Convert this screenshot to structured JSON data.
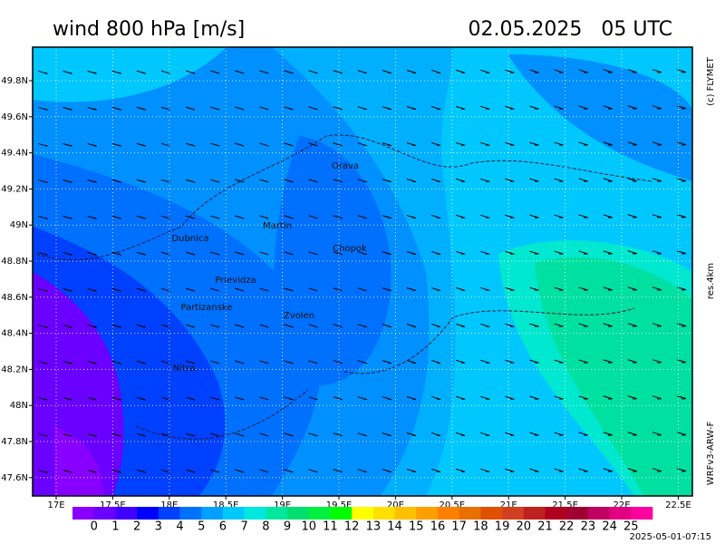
{
  "header": {
    "title": "wind 800 hPa [m/s]",
    "datetime": "02.05.2025   05 UTC"
  },
  "side_labels": {
    "credit": "(c) FLYMET",
    "resolution": "res.4km",
    "model": "WRFv3-ARW-F"
  },
  "lat_ticks": [
    "49.8N",
    "49.6N",
    "49.4N",
    "49.2N",
    "49N",
    "48.8N",
    "48.6N",
    "48.4N",
    "48.2N",
    "48N",
    "47.8N",
    "47.6N"
  ],
  "lon_ticks": [
    "17E",
    "17.5E",
    "18E",
    "18.5E",
    "19E",
    "19.5E",
    "20E",
    "20.5E",
    "21E",
    "21.5E",
    "22E",
    "22.5E"
  ],
  "cities": [
    "Orava",
    "Martin",
    "Dubnica",
    "Chopok",
    "Prievidza",
    "Partizanske",
    "Zvolen",
    "Nitra"
  ],
  "colorbar": {
    "labels": [
      "0",
      "1",
      "2",
      "3",
      "4",
      "5",
      "6",
      "7",
      "8",
      "9",
      "10",
      "11",
      "12",
      "13",
      "14",
      "15",
      "16",
      "17",
      "18",
      "19",
      "20",
      "21",
      "22",
      "23",
      "24",
      "25"
    ],
    "colors": [
      "#8800ff",
      "#6a00ff",
      "#4000ff",
      "#0000ff",
      "#0040ff",
      "#0070ff",
      "#00a0ff",
      "#00c8ff",
      "#00e8e0",
      "#00e8a0",
      "#00e070",
      "#00f040",
      "#00ff00",
      "#ffff00",
      "#ffe000",
      "#ffc000",
      "#ffa000",
      "#ff8000",
      "#e87000",
      "#e05000",
      "#d04020",
      "#c02020",
      "#b00020",
      "#a00030",
      "#c00060",
      "#e00080",
      "#ff00a0"
    ]
  },
  "footer": {
    "timestamp": "2025-05-01-07:15"
  }
}
